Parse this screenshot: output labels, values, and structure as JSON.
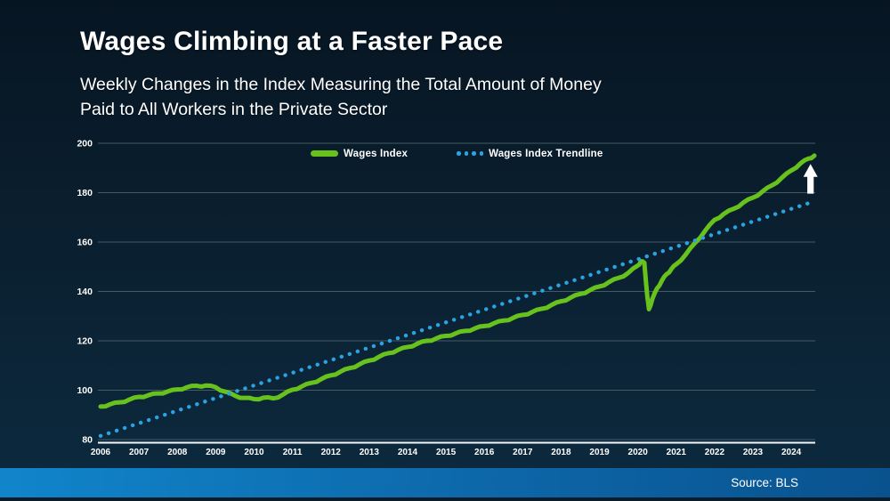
{
  "header": {
    "title": "Wages Climbing at a Faster Pace",
    "subtitle_lines": [
      "Weekly Changes in the Index Measuring the Total Amount of Money",
      "Paid to All Workers in the Private Sector"
    ]
  },
  "legend": {
    "items": [
      {
        "label": "Wages Index",
        "color": "#68c21e",
        "marker": "line"
      },
      {
        "label": "Wages Index Trendline",
        "color": "#2aa3e1",
        "marker": "dots"
      }
    ]
  },
  "footer": {
    "source_label": "Source: BLS"
  },
  "colors": {
    "background_top": "#071522",
    "background_bottom": "#0d2a3f",
    "gridline": "#4e6470",
    "axis_line": "#f2f7fa",
    "tick_label": "#ffffff",
    "wages_line": "#68c21e",
    "trendline": "#2aa3e1",
    "arrow": "#ffffff",
    "footer_bar_left": "#1185cb",
    "footer_bar_right": "#09528e"
  },
  "chart_data": {
    "type": "line",
    "title": "Wages Climbing at a Faster Pace",
    "xlabel": "",
    "ylabel": "",
    "grid": true,
    "legend_position": "top-center",
    "xlim": [
      2006,
      2024.6
    ],
    "ylim": [
      80,
      200
    ],
    "x_ticks": [
      2006,
      2007,
      2008,
      2009,
      2010,
      2011,
      2012,
      2013,
      2014,
      2015,
      2016,
      2017,
      2018,
      2019,
      2020,
      2021,
      2022,
      2023,
      2024
    ],
    "y_ticks": [
      80,
      100,
      120,
      140,
      160,
      180,
      200
    ],
    "series": [
      {
        "name": "Wages Index",
        "color": "#68c21e",
        "style": "solid",
        "points": [
          [
            2006.0,
            93.4
          ],
          [
            2006.25,
            94.3
          ],
          [
            2006.5,
            95.1
          ],
          [
            2006.75,
            96.2
          ],
          [
            2007.0,
            97.3
          ],
          [
            2007.25,
            98.0
          ],
          [
            2007.5,
            98.7
          ],
          [
            2007.75,
            99.5
          ],
          [
            2008.0,
            100.3
          ],
          [
            2008.25,
            101.2
          ],
          [
            2008.5,
            101.8
          ],
          [
            2008.75,
            101.9
          ],
          [
            2009.0,
            101.2
          ],
          [
            2009.25,
            99.4
          ],
          [
            2009.5,
            97.8
          ],
          [
            2009.75,
            96.9
          ],
          [
            2010.0,
            96.4
          ],
          [
            2010.25,
            97.0
          ],
          [
            2010.5,
            96.7
          ],
          [
            2010.75,
            98.2
          ],
          [
            2011.0,
            100.2
          ],
          [
            2011.25,
            101.6
          ],
          [
            2011.5,
            103.0
          ],
          [
            2011.75,
            104.5
          ],
          [
            2012.0,
            106.0
          ],
          [
            2012.25,
            107.5
          ],
          [
            2012.5,
            109.0
          ],
          [
            2012.75,
            110.5
          ],
          [
            2013.0,
            112.0
          ],
          [
            2013.25,
            113.5
          ],
          [
            2013.5,
            115.0
          ],
          [
            2013.75,
            116.3
          ],
          [
            2014.0,
            117.5
          ],
          [
            2014.25,
            118.8
          ],
          [
            2014.5,
            120.0
          ],
          [
            2014.75,
            121.0
          ],
          [
            2015.0,
            122.0
          ],
          [
            2015.25,
            123.0
          ],
          [
            2015.5,
            124.0
          ],
          [
            2015.75,
            125.0
          ],
          [
            2016.0,
            126.0
          ],
          [
            2016.25,
            127.1
          ],
          [
            2016.5,
            128.2
          ],
          [
            2016.75,
            129.3
          ],
          [
            2017.0,
            130.5
          ],
          [
            2017.25,
            131.7
          ],
          [
            2017.5,
            133.0
          ],
          [
            2017.75,
            134.5
          ],
          [
            2018.0,
            136.0
          ],
          [
            2018.25,
            137.5
          ],
          [
            2018.5,
            139.0
          ],
          [
            2018.75,
            140.5
          ],
          [
            2019.0,
            142.0
          ],
          [
            2019.25,
            143.8
          ],
          [
            2019.5,
            145.5
          ],
          [
            2019.75,
            147.5
          ],
          [
            2020.0,
            150.5
          ],
          [
            2020.08,
            152.2
          ],
          [
            2020.17,
            151.6
          ],
          [
            2020.25,
            137.5
          ],
          [
            2020.29,
            132.8
          ],
          [
            2020.38,
            137.0
          ],
          [
            2020.5,
            141.2
          ],
          [
            2020.63,
            144.5
          ],
          [
            2020.75,
            147.0
          ],
          [
            2020.88,
            149.2
          ],
          [
            2021.0,
            151.0
          ],
          [
            2021.25,
            155.0
          ],
          [
            2021.5,
            159.8
          ],
          [
            2021.75,
            164.5
          ],
          [
            2022.0,
            169.0
          ],
          [
            2022.25,
            171.5
          ],
          [
            2022.5,
            173.5
          ],
          [
            2022.75,
            176.0
          ],
          [
            2023.0,
            178.0
          ],
          [
            2023.25,
            180.5
          ],
          [
            2023.5,
            183.0
          ],
          [
            2023.75,
            186.0
          ],
          [
            2024.0,
            189.0
          ],
          [
            2024.25,
            192.0
          ],
          [
            2024.45,
            193.8
          ],
          [
            2024.6,
            195.0
          ]
        ]
      },
      {
        "name": "Wages Index Trendline",
        "color": "#2aa3e1",
        "style": "dotted",
        "points": [
          [
            2006.0,
            81.5
          ],
          [
            2024.6,
            176.5
          ]
        ]
      }
    ],
    "annotations": [
      {
        "type": "arrow-up",
        "x": 2024.5,
        "value_top": 191.6,
        "value_bottom": 179.6,
        "color": "#ffffff"
      }
    ],
    "source": "Source: BLS"
  }
}
